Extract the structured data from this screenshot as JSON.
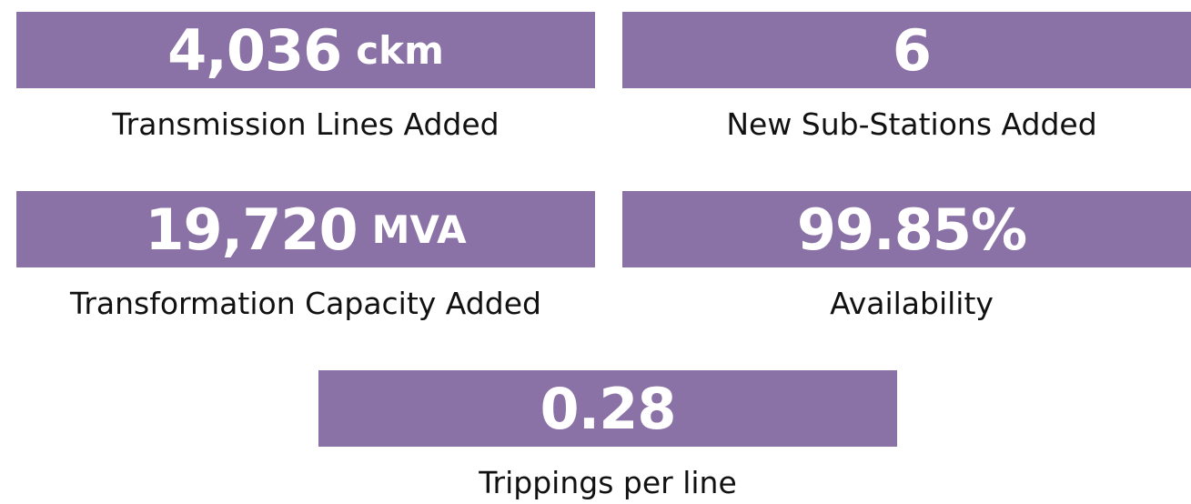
{
  "stats": [
    {
      "value": "4,036",
      "unit": "ckm",
      "label": "Transmission Lines Added"
    },
    {
      "value": "6",
      "label": "New Sub-Stations Added"
    },
    {
      "value": "19,720",
      "unit": "MVA",
      "label": "Transformation Capacity Added"
    },
    {
      "value": "99.85%",
      "label": "Availability"
    },
    {
      "value": "0.28",
      "label": "Trippings per line"
    }
  ]
}
